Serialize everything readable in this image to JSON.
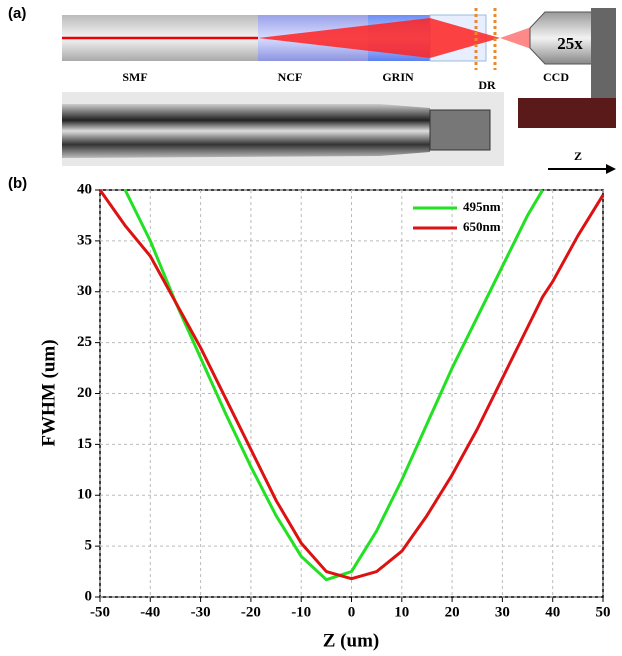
{
  "figure": {
    "panel_a": "(a)",
    "panel_b": "(b)",
    "labels": {
      "smf": "SMF",
      "ncf": "NCF",
      "grin": "GRIN",
      "dr": "DR",
      "ccd": "CCD",
      "objective": "25x",
      "axis": "Z"
    }
  },
  "chart_data": {
    "type": "line",
    "x_label": "Z (um)",
    "y_label": "FWHM (um)",
    "x": [
      -50,
      -45,
      -40,
      -35,
      -30,
      -25,
      -20,
      -15,
      -10,
      -5,
      0,
      5,
      10,
      15,
      20,
      25,
      30,
      35,
      38,
      40,
      45,
      50
    ],
    "series": [
      {
        "name": "495nm",
        "color": "#22e022",
        "values": [
          null,
          40,
          35,
          29,
          23.5,
          18,
          12.8,
          8,
          4,
          1.7,
          2.5,
          6.5,
          11.5,
          17,
          22.5,
          27.5,
          32.5,
          37.5,
          40,
          null,
          null,
          null
        ]
      },
      {
        "name": "650nm",
        "color": "#dd1111",
        "values": [
          40,
          36.5,
          33.5,
          29,
          24.5,
          19.5,
          14.5,
          9.5,
          5.3,
          2.5,
          1.8,
          2.5,
          4.5,
          8,
          12,
          16.5,
          21.5,
          26.5,
          29.5,
          31,
          35.5,
          39.5
        ]
      }
    ],
    "xlim": [
      -50,
      50
    ],
    "xticks": [
      -50,
      -40,
      -30,
      -20,
      -10,
      0,
      10,
      20,
      30,
      40,
      50
    ],
    "ylim": [
      0,
      40
    ],
    "yticks": [
      0,
      5,
      10,
      15,
      20,
      25,
      30,
      35,
      40
    ],
    "grid": true,
    "legend": "upper-right"
  }
}
